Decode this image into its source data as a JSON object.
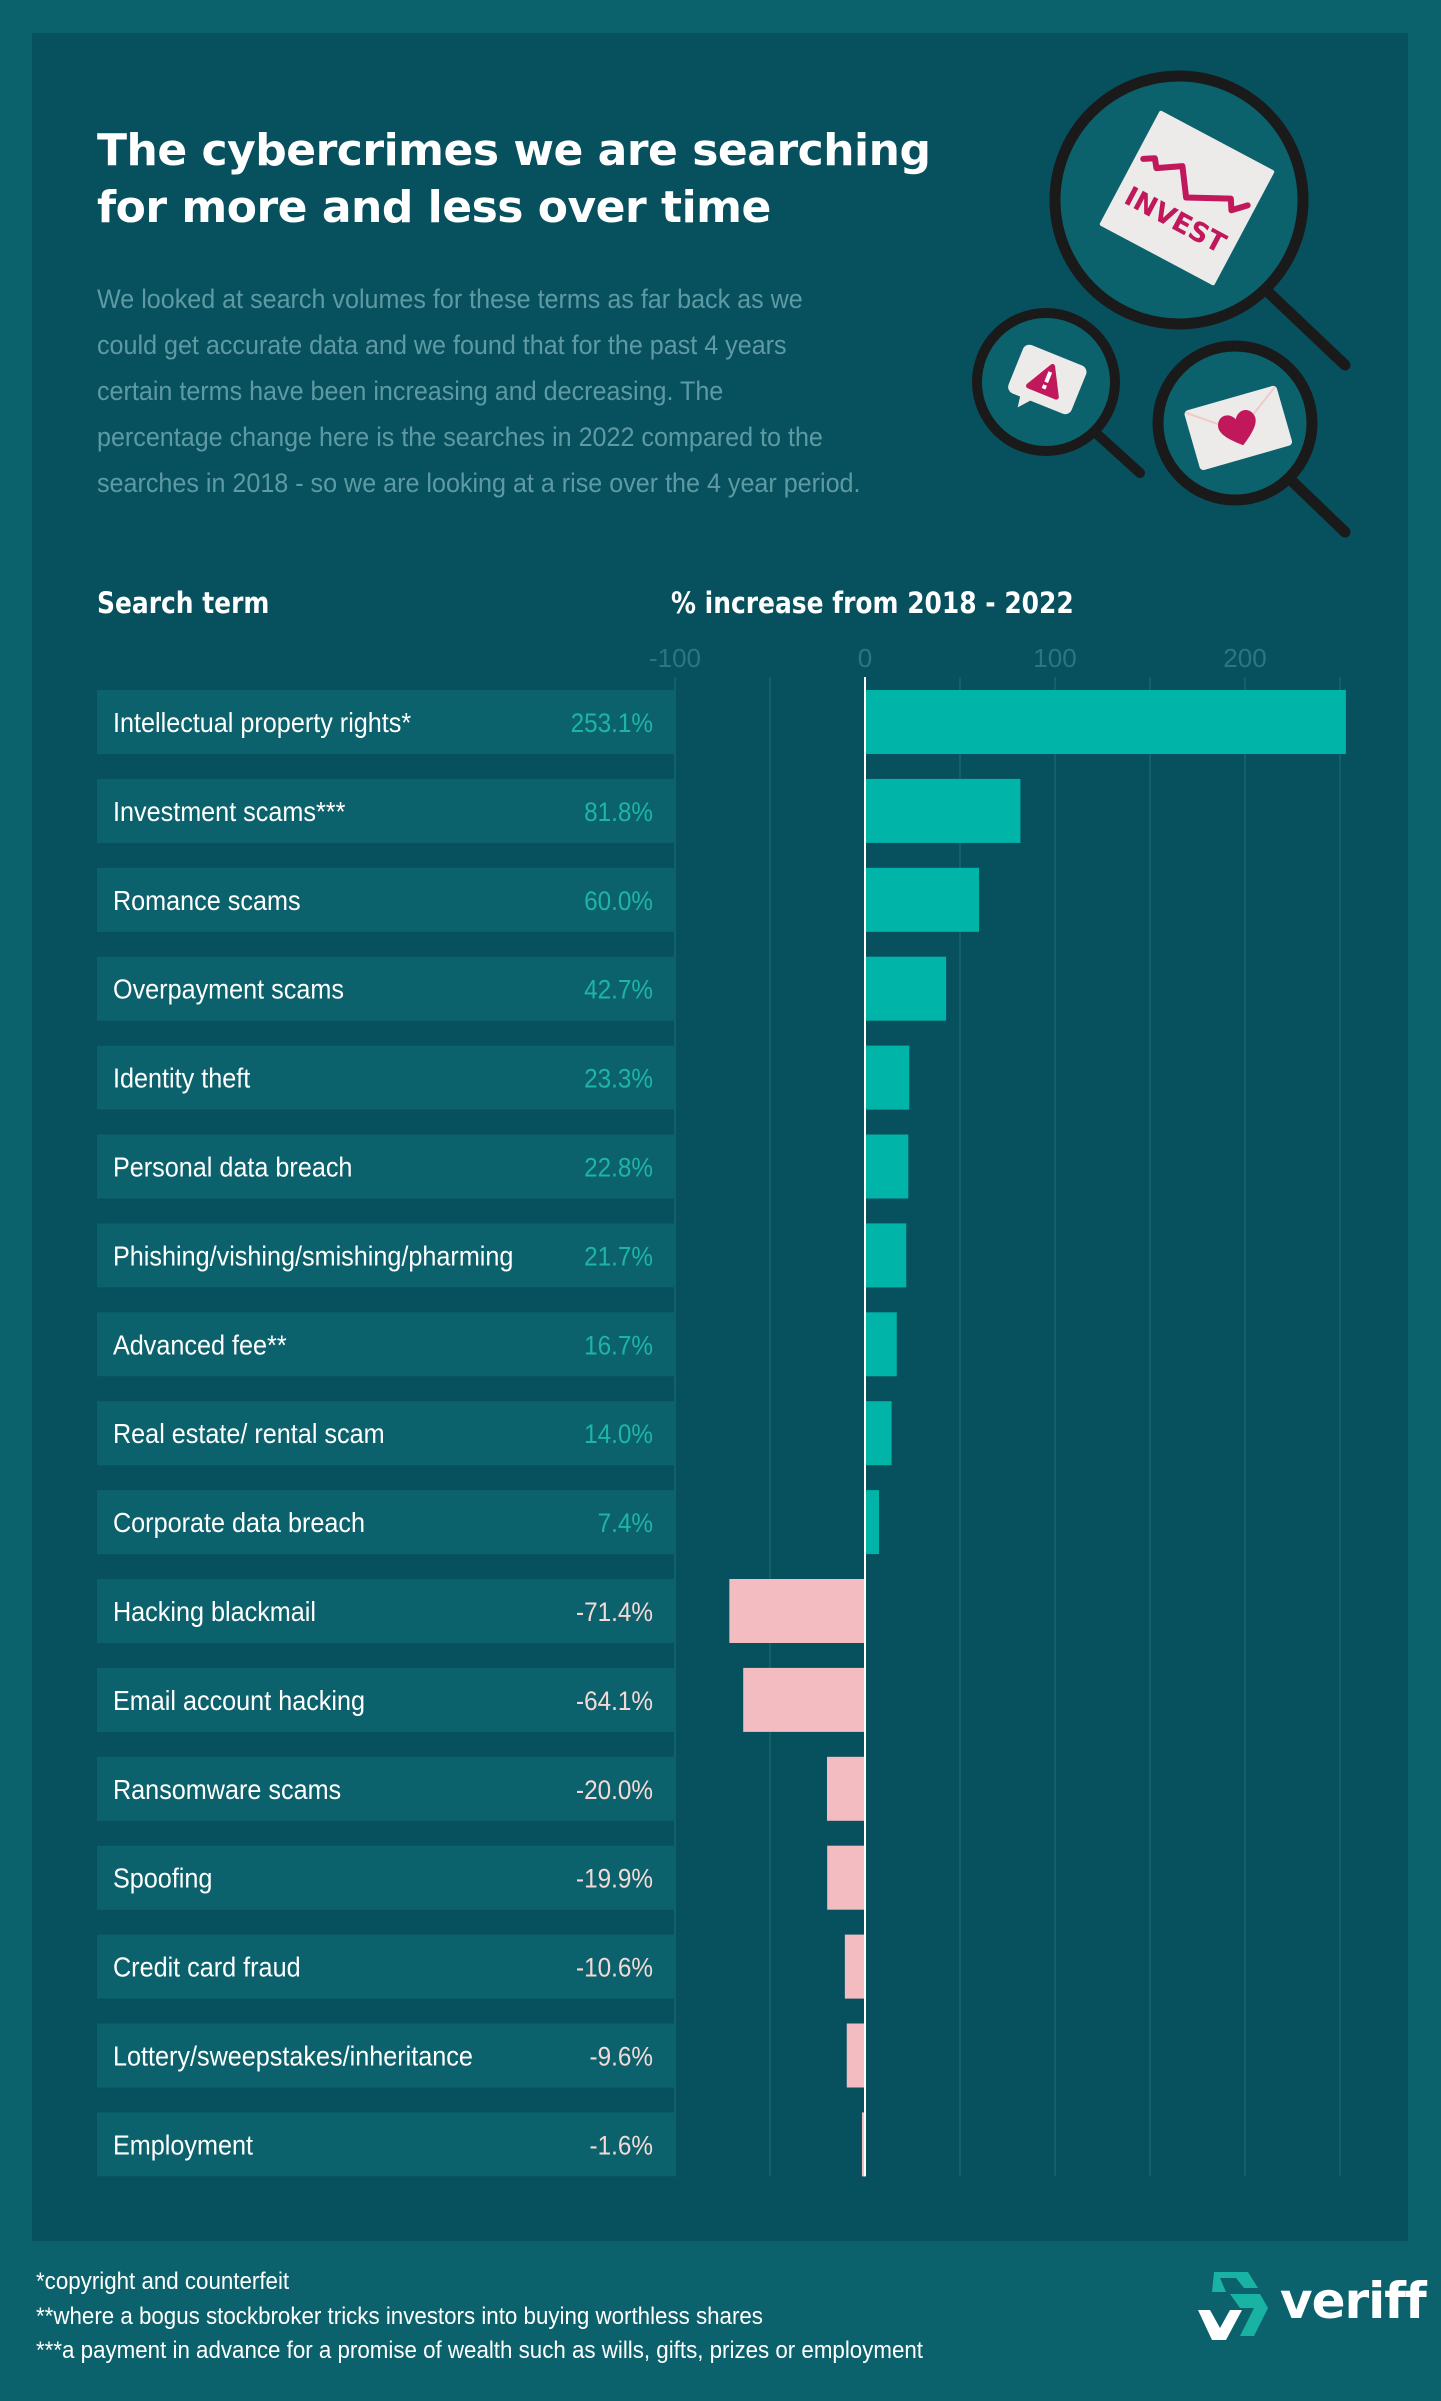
{
  "title": {
    "line1": "The cybercrimes we are searching",
    "line2": "for more and less over time"
  },
  "intro": {
    "lines": [
      "We looked at search volumes for these terms as far back as we",
      "could get accurate data and we found that for the past 4 years",
      "certain terms have been increasing and decreasing. The",
      "percentage change here is the searches in 2022 compared to the",
      "searches in 2018 - so we are looking at a rise over the 4 year period."
    ]
  },
  "illustration": {
    "invest_label": "INVEST",
    "icons": [
      "magnifier-invest-icon",
      "magnifier-alert-icon",
      "magnifier-love-letter-icon"
    ]
  },
  "colors": {
    "page_bg": "#0c626c",
    "panel_bg": "#07505e",
    "positive": "#00b5a8",
    "positive_text": "#1db5a6",
    "negative": "#f2bcc0",
    "negative_text": "#f3dad6",
    "accent_magenta": "#c0185a"
  },
  "chart_data": {
    "type": "bar",
    "orientation": "horizontal",
    "column_headers": {
      "term": "Search term",
      "value": "% increase from 2018 - 2022"
    },
    "xlim": [
      -100,
      250
    ],
    "ticks": [
      -100,
      0,
      100,
      200
    ],
    "tick_labels": [
      "-100",
      "0",
      "100",
      "200"
    ],
    "gridlines": [
      -100,
      -50,
      50,
      100,
      150,
      200,
      250
    ],
    "grid": true,
    "categories": [
      "Intellectual property rights*",
      "Investment scams***",
      "Romance scams",
      "Overpayment scams",
      "Identity theft",
      "Personal data breach",
      "Phishing/vishing/smishing/pharming",
      "Advanced fee**",
      "Real estate/ rental scam",
      "Corporate data breach",
      "Hacking blackmail",
      "Email account hacking",
      "Ransomware scams",
      "Spoofing",
      "Credit card fraud",
      "Lottery/sweepstakes/inheritance",
      "Employment"
    ],
    "values": [
      253.1,
      81.8,
      60.0,
      42.7,
      23.3,
      22.8,
      21.7,
      16.7,
      14.0,
      7.4,
      -71.4,
      -64.1,
      -20.0,
      -19.9,
      -10.6,
      -9.6,
      -1.6
    ],
    "value_labels": [
      "253.1%",
      "81.8%",
      "60.0%",
      "42.7%",
      "23.3%",
      "22.8%",
      "21.7%",
      "16.7%",
      "14.0%",
      "7.4%",
      "-71.4%",
      "-64.1%",
      "-20.0%",
      "-19.9%",
      "-10.6%",
      "-9.6%",
      "-1.6%"
    ]
  },
  "footnotes": [
    "*copyright and counterfeit",
    "**where a bogus stockbroker tricks investors into buying worthless shares",
    "***a payment in advance for a promise of wealth such as wills, gifts, prizes or employment"
  ],
  "brand": {
    "name": "veriff"
  }
}
